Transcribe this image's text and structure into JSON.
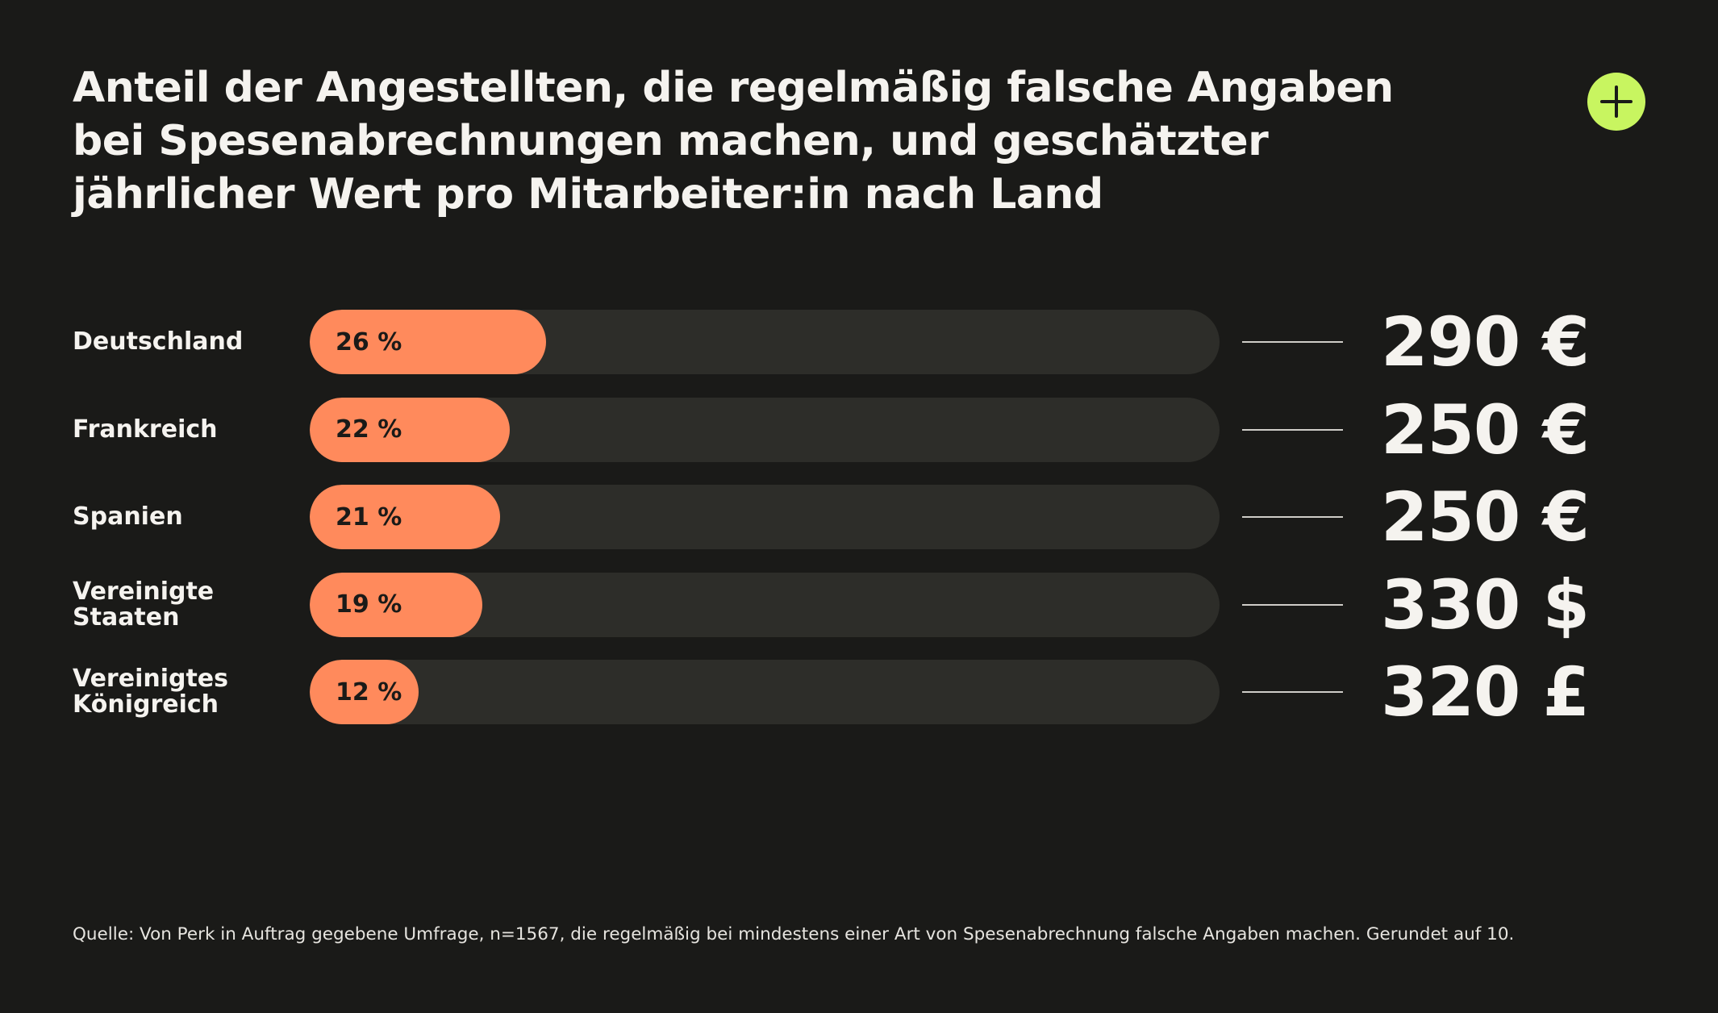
{
  "colors": {
    "background": "#1a1a18",
    "bar_track": "#2d2d29",
    "bar_fill": "#ff8a5c",
    "logo_accent": "#c8f560",
    "text": "#f5f3ef"
  },
  "logo": {
    "icon": "plus-icon"
  },
  "chart_data": {
    "type": "bar",
    "orientation": "horizontal",
    "title": "Anteil der Angestellten, die regelmäßig falsche Angaben bei Spesenabrechnungen machen, und geschätzter jährlicher Wert pro Mitarbeiter:in nach Land",
    "categories": [
      "Deutschland",
      "Frankreich",
      "Spanien",
      "Vereinigte\nStaaten",
      "Vereinigtes\nKönigreich"
    ],
    "values": [
      26,
      22,
      21,
      19,
      12
    ],
    "value_labels": [
      "26 %",
      "22 %",
      "21 %",
      "19 %",
      "12 %"
    ],
    "annual_value_labels": [
      "290 €",
      "250 €",
      "250 €",
      "330 $",
      "320 £"
    ],
    "unit": "%",
    "xlim": [
      0,
      100
    ],
    "grid": false,
    "legend": "none",
    "source": "Quelle: Von Perk in Auftrag gegebene Umfrage, n=1567, die regelmäßig bei mindestens einer Art von Spesenabrechnung falsche Angaben machen. Gerundet auf 10."
  }
}
